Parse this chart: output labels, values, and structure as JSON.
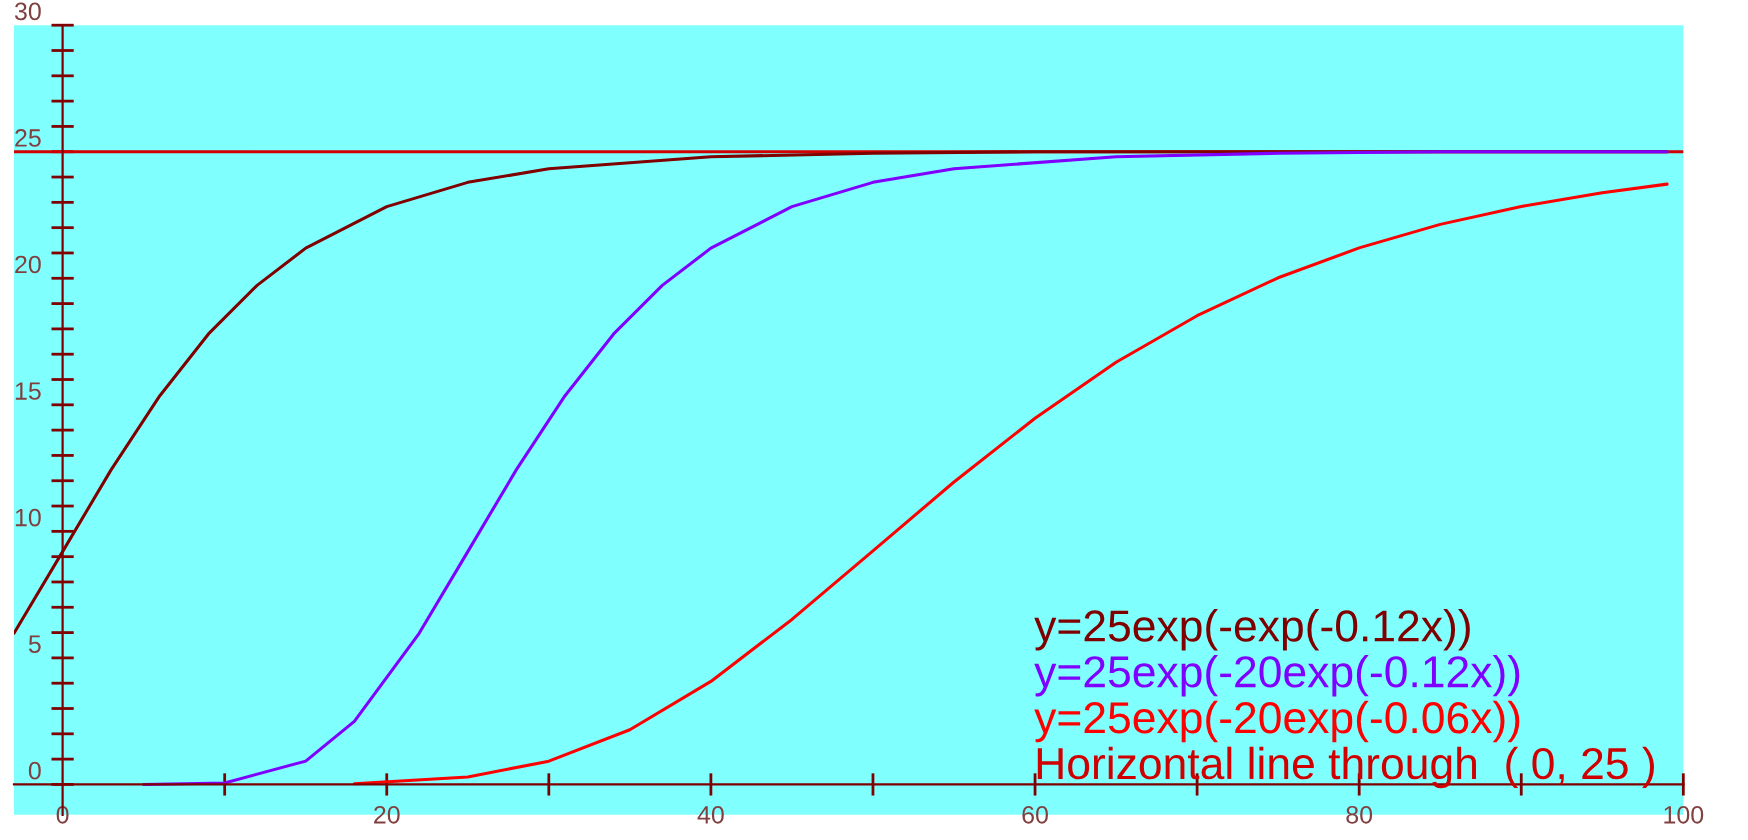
{
  "chart_data": {
    "type": "line",
    "series": [
      {
        "name": "y=25exp(-exp(-0.12x))",
        "color": "#800000",
        "x": [
          -3,
          0,
          3,
          6,
          9,
          12,
          15,
          20,
          25,
          30,
          40,
          50,
          60,
          70,
          80,
          90,
          99
        ],
        "values": [
          5.97,
          9.2,
          12.44,
          15.36,
          17.8,
          19.72,
          21.19,
          22.83,
          23.79,
          24.33,
          24.8,
          24.94,
          25.0,
          25.0,
          25.0,
          25.0,
          25.0
        ]
      },
      {
        "name": "y=25exp(-20exp(-0.12x))",
        "color": "#8000ff",
        "x": [
          5,
          10,
          15,
          18,
          22,
          25,
          28,
          31,
          34,
          37,
          40,
          45,
          50,
          55,
          65,
          75,
          85,
          99
        ],
        "values": [
          0.0,
          0.06,
          0.92,
          2.49,
          5.97,
          9.2,
          12.44,
          15.36,
          17.8,
          19.72,
          21.19,
          22.83,
          23.79,
          24.33,
          24.8,
          24.94,
          25.0,
          25.0
        ]
      },
      {
        "name": "y=25exp(-20exp(-0.06x))",
        "color": "#ff0000",
        "x": [
          18,
          25,
          30,
          35,
          40,
          45,
          50,
          55,
          60,
          65,
          70,
          75,
          80,
          85,
          90,
          95,
          99
        ],
        "values": [
          0.03,
          0.29,
          0.92,
          2.16,
          4.07,
          6.52,
          9.23,
          11.95,
          14.47,
          16.68,
          18.52,
          20.02,
          21.2,
          22.13,
          22.84,
          23.38,
          23.72
        ]
      }
    ],
    "ref_lines": [
      {
        "axis": "y",
        "value": 25,
        "label": "Horizontal line through  ( 0, 25 )",
        "color": "#d00000"
      }
    ],
    "xlim": [
      -3,
      100
    ],
    "ylim": [
      -1.2,
      30
    ],
    "xticks": [
      0,
      {
        "value": 10,
        "label": null
      },
      20,
      {
        "value": 30,
        "label": null
      },
      40,
      {
        "value": 50,
        "label": null
      },
      60,
      {
        "value": 70,
        "label": null
      },
      80,
      {
        "value": 90,
        "label": null
      },
      100
    ],
    "yticks": [
      0,
      {
        "value": 1,
        "label": null
      },
      {
        "value": 2,
        "label": null
      },
      {
        "value": 3,
        "label": null
      },
      {
        "value": 4,
        "label": null
      },
      5,
      {
        "value": 6,
        "label": null
      },
      {
        "value": 7,
        "label": null
      },
      {
        "value": 8,
        "label": null
      },
      {
        "value": 9,
        "label": null
      },
      10,
      {
        "value": 11,
        "label": null
      },
      {
        "value": 12,
        "label": null
      },
      {
        "value": 13,
        "label": null
      },
      {
        "value": 14,
        "label": null
      },
      15,
      {
        "value": 16,
        "label": null
      },
      {
        "value": 17,
        "label": null
      },
      {
        "value": 18,
        "label": null
      },
      {
        "value": 19,
        "label": null
      },
      20,
      {
        "value": 21,
        "label": null
      },
      {
        "value": 22,
        "label": null
      },
      {
        "value": 23,
        "label": null
      },
      {
        "value": 24,
        "label": null
      },
      25,
      {
        "value": 26,
        "label": null
      },
      {
        "value": 27,
        "label": null
      },
      {
        "value": 28,
        "label": null
      },
      {
        "value": 29,
        "label": null
      },
      30
    ],
    "legend": "bottom right",
    "marker": "none",
    "line_style": "solid"
  }
}
